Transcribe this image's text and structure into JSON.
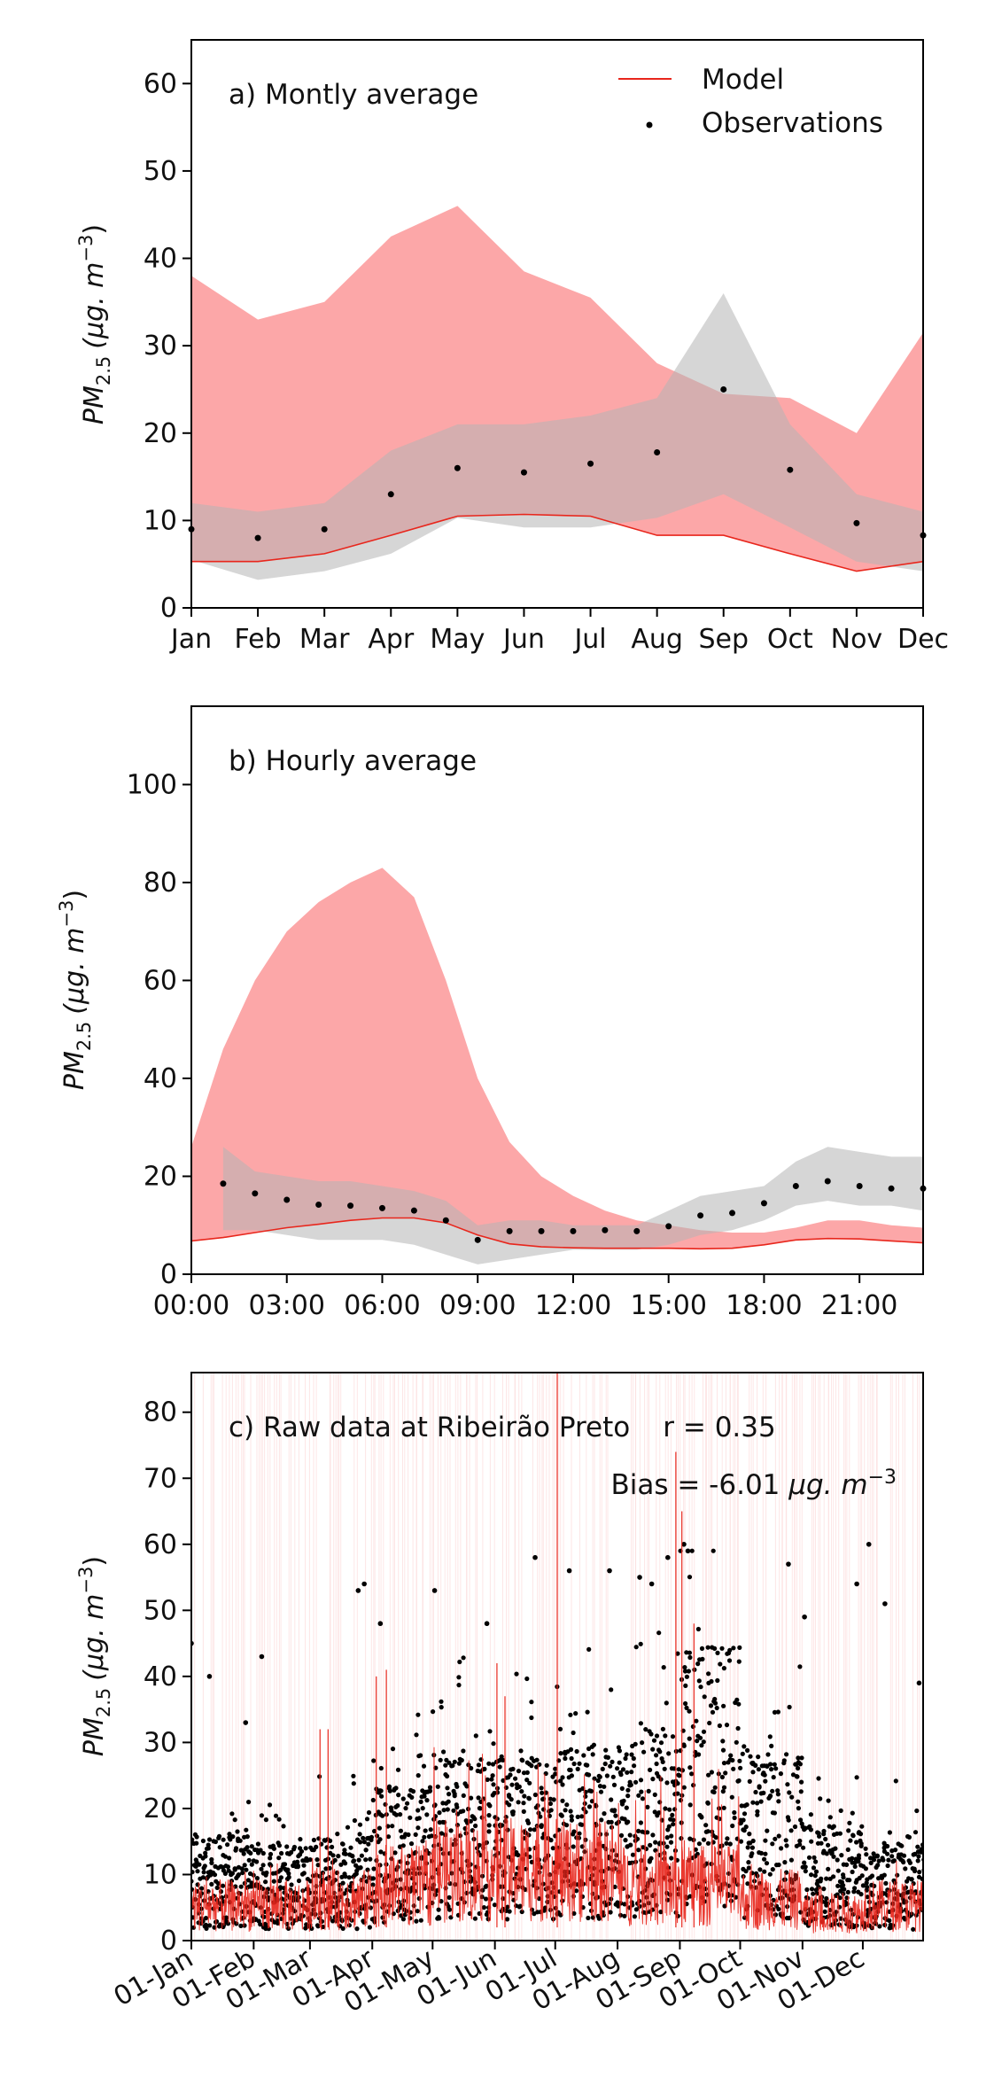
{
  "colors": {
    "model": "#e8261c",
    "model_band": "#fca7a8",
    "obs_band": "#b4b4b4",
    "observations": "#000000",
    "raw_model_bg": "#fde0e0"
  },
  "chart_data": [
    {
      "type": "area",
      "annotation": "a) Montly average",
      "ylabel_base": "PM",
      "ylabel_sub": "2.5",
      "ylabel_unit": "(μg. m",
      "ylabel_exp": "−3",
      "ylabel_close": ")",
      "ylim": [
        0,
        65
      ],
      "yticks": [
        "0",
        "10",
        "20",
        "30",
        "40",
        "50",
        "60"
      ],
      "categories": [
        "Jan",
        "Feb",
        "Mar",
        "Apr",
        "May",
        "Jun",
        "Jul",
        "Aug",
        "Sep",
        "Oct",
        "Nov",
        "Dec"
      ],
      "legend": {
        "placement": "top-right",
        "model": "Model",
        "observations": "Observations"
      },
      "series": [
        {
          "name": "Model",
          "kind": "line",
          "values": [
            5.3,
            5.3,
            6.2,
            8.3,
            10.5,
            10.7,
            10.5,
            8.3,
            8.3,
            6.2,
            4.2,
            5.3
          ]
        },
        {
          "name": "Observations",
          "kind": "scatter",
          "values": [
            9.0,
            8.0,
            9.0,
            13.0,
            16.0,
            15.5,
            16.5,
            17.8,
            25.0,
            15.8,
            9.7,
            8.3
          ]
        }
      ],
      "model_band": {
        "low": [
          5.3,
          5.3,
          6.2,
          8.3,
          10.5,
          10.7,
          10.5,
          8.3,
          8.3,
          6.2,
          4.2,
          5.3
        ],
        "high": [
          38,
          33,
          35,
          42.5,
          46,
          38.5,
          35.5,
          28,
          24.5,
          24,
          20,
          31.5
        ]
      },
      "obs_band": {
        "low": [
          5.5,
          3.2,
          4.2,
          6.2,
          10.3,
          9.2,
          9.2,
          10.3,
          13,
          9.2,
          5.3,
          4.2
        ],
        "high": [
          12,
          11,
          12,
          18,
          21,
          21,
          22,
          24,
          36,
          21,
          13,
          11
        ]
      }
    },
    {
      "type": "area",
      "annotation": "b) Hourly average",
      "ylabel_base": "PM",
      "ylabel_sub": "2.5",
      "ylabel_unit": "(μg. m",
      "ylabel_exp": "−3",
      "ylabel_close": ")",
      "ylim": [
        0,
        116
      ],
      "yticks": [
        "0",
        "20",
        "40",
        "60",
        "80",
        "100"
      ],
      "xticks": [
        "00:00",
        "03:00",
        "06:00",
        "09:00",
        "12:00",
        "15:00",
        "18:00",
        "21:00"
      ],
      "xlim": [
        0,
        23
      ],
      "model_line": [
        6.8,
        7.5,
        8.5,
        9.5,
        10.2,
        11,
        11.5,
        11.5,
        10.5,
        8.0,
        6.2,
        5.6,
        5.4,
        5.3,
        5.3,
        5.3,
        5.2,
        5.3,
        6.0,
        7.0,
        7.3,
        7.2,
        6.8,
        6.4
      ],
      "model_band_high": [
        26,
        46,
        60,
        70,
        76,
        80,
        83,
        77,
        60,
        40,
        27,
        20,
        16,
        13,
        11,
        10,
        9,
        8.5,
        8.5,
        9.5,
        11,
        11,
        10,
        9.5
      ],
      "model_band_low": [
        6.8,
        7.5,
        8.5,
        9.5,
        10.2,
        11,
        11.5,
        11.5,
        10.5,
        8.0,
        6.2,
        5.6,
        5.4,
        5.3,
        5.3,
        5.3,
        5.2,
        5.3,
        6.0,
        7.0,
        7.3,
        7.2,
        6.8,
        6.4
      ],
      "obs_hours": [
        1,
        2,
        3,
        4,
        5,
        6,
        7,
        8,
        9,
        10,
        11,
        12,
        13,
        14,
        15,
        16,
        17,
        18,
        19,
        20,
        21,
        22,
        23
      ],
      "obs_values": [
        18.5,
        16.5,
        15.2,
        14.2,
        14.0,
        13.5,
        13.0,
        11.0,
        7.0,
        8.8,
        8.8,
        8.8,
        9.0,
        8.8,
        9.8,
        12.0,
        12.5,
        14.5,
        18.0,
        19.0,
        18.0,
        17.5,
        17.5
      ],
      "obs_band_high": [
        26,
        21,
        20,
        19,
        19,
        18,
        17,
        15,
        10,
        11,
        11,
        10,
        10,
        10,
        13,
        16,
        17,
        18,
        23,
        26,
        25,
        24,
        24
      ],
      "obs_band_low": [
        9,
        9,
        8,
        7,
        7,
        7,
        6,
        4,
        2,
        3,
        4,
        5,
        5,
        5,
        6,
        8,
        9,
        11,
        14,
        15,
        14,
        14,
        13
      ]
    },
    {
      "type": "line",
      "annotation": "c) Raw data at Ribeirão Preto",
      "stat_r": "r = 0.35",
      "stat_bias_text": "Bias = -6.01 ",
      "stat_bias_unit": "μg. m",
      "stat_bias_exp": "−3",
      "ylabel_base": "PM",
      "ylabel_sub": "2.5",
      "ylabel_unit": "(μg. m",
      "ylabel_exp": "−3",
      "ylabel_close": ")",
      "ylim": [
        0,
        86
      ],
      "yticks": [
        "0",
        "10",
        "20",
        "30",
        "40",
        "50",
        "60",
        "70",
        "80"
      ],
      "xlim": [
        "2023-01-01",
        "2023-12-31"
      ],
      "xticks": [
        "01-Jan",
        "01-Feb",
        "01-Mar",
        "01-Apr",
        "01-May",
        "01-Jun",
        "01-Jul",
        "01-Aug",
        "01-Sep",
        "01-Oct",
        "01-Nov",
        "01-Dec"
      ],
      "xtick_dates": [
        "2023-01-01",
        "2023-02-01",
        "2023-03-01",
        "2023-04-01",
        "2023-05-01",
        "2023-06-01",
        "2023-07-01",
        "2023-08-01",
        "2023-09-01",
        "2023-10-01",
        "2023-11-01",
        "2023-12-01"
      ],
      "model_monthly_mean": [
        5.3,
        5.3,
        6.2,
        8.3,
        10.5,
        10.7,
        10.5,
        8.3,
        8.3,
        6.2,
        4.2,
        5.3
      ],
      "obs_monthly_mean": [
        9.0,
        8.0,
        9.0,
        13.0,
        16.0,
        15.5,
        16.5,
        17.8,
        25.0,
        15.8,
        9.7,
        8.3
      ],
      "obs_max_points": [
        {
          "x": "2023-01-01",
          "y": 45
        },
        {
          "x": "2023-01-10",
          "y": 40
        },
        {
          "x": "2023-01-28",
          "y": 33
        },
        {
          "x": "2023-02-05",
          "y": 43
        },
        {
          "x": "2023-03-25",
          "y": 53
        },
        {
          "x": "2023-03-28",
          "y": 54
        },
        {
          "x": "2023-04-05",
          "y": 48
        },
        {
          "x": "2023-05-02",
          "y": 53
        },
        {
          "x": "2023-05-28",
          "y": 48
        },
        {
          "x": "2023-06-21",
          "y": 58
        },
        {
          "x": "2023-07-08",
          "y": 56
        },
        {
          "x": "2023-07-28",
          "y": 56
        },
        {
          "x": "2023-08-12",
          "y": 55
        },
        {
          "x": "2023-08-18",
          "y": 54
        },
        {
          "x": "2023-08-26",
          "y": 58
        },
        {
          "x": "2023-09-03",
          "y": 60
        },
        {
          "x": "2023-09-05",
          "y": 59
        },
        {
          "x": "2023-10-25",
          "y": 57
        },
        {
          "x": "2023-11-02",
          "y": 49
        },
        {
          "x": "2023-11-28",
          "y": 54
        },
        {
          "x": "2023-12-04",
          "y": 60
        },
        {
          "x": "2023-12-12",
          "y": 51
        },
        {
          "x": "2023-12-29",
          "y": 39
        }
      ],
      "model_peaks": [
        {
          "x": "2023-03-06",
          "y": 32
        },
        {
          "x": "2023-03-10",
          "y": 32
        },
        {
          "x": "2023-04-03",
          "y": 40
        },
        {
          "x": "2023-04-08",
          "y": 41
        },
        {
          "x": "2023-06-02",
          "y": 42
        },
        {
          "x": "2023-06-06",
          "y": 37
        },
        {
          "x": "2023-07-02",
          "y": 86
        },
        {
          "x": "2023-08-30",
          "y": 74
        },
        {
          "x": "2023-09-02",
          "y": 65
        },
        {
          "x": "2023-09-08",
          "y": 48
        }
      ]
    }
  ]
}
